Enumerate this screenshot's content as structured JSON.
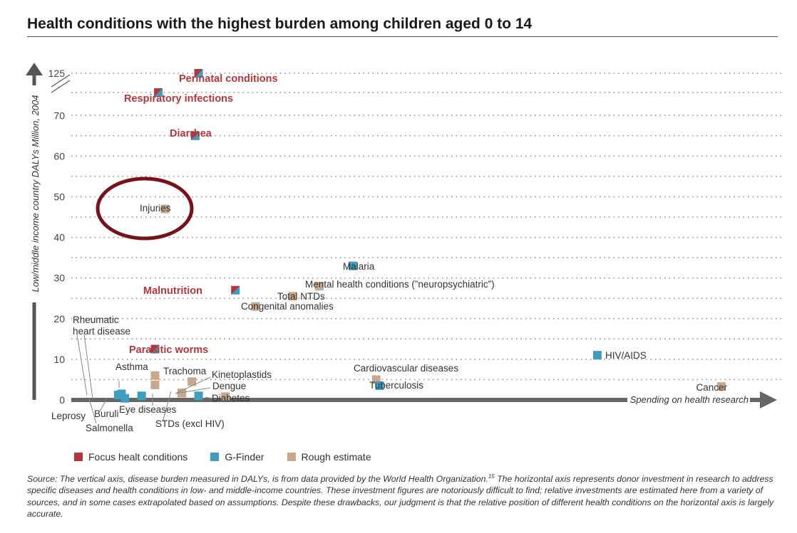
{
  "title": "Health conditions with the highest burden among children aged 0 to 14",
  "colors": {
    "focus": "#b5373c",
    "gfinder": "#3f9ebf",
    "rough": "#c9a78a",
    "axis": "#666666",
    "circle": "#7a1018",
    "focus_label": "#b5373c"
  },
  "legend": [
    {
      "label": "Focus healt conditions",
      "color_key": "focus"
    },
    {
      "label": "G-Finder",
      "color_key": "gfinder"
    },
    {
      "label": "Rough estimate",
      "color_key": "rough"
    }
  ],
  "source": {
    "text": "Source: The vertical axis, disease burden measured in DALYs, is from data provided by the World Health Organization.",
    "footnote": "15",
    "text2": " The horizontal axis represents donor investment in research to address specific diseases and health conditions in low- and middle-income countries. These investment figures are notoriously difficult to find; relative investments are estimated here from a variety of sources, and in some cases extrapolated based on assumptions. Despite these drawbacks, our judgment is that the relative position of different health conditions on the horizontal axis is largely accurate."
  },
  "chart_data": {
    "type": "scatter",
    "title": "Health conditions with the highest burden among children aged 0 to 14",
    "ylabel": "Low/middle income country DALYs Million, 2004",
    "xlabel": "Spending on health research",
    "yticks": [
      "0",
      "10",
      "20",
      "30",
      "40",
      "50",
      "60",
      "70",
      "125"
    ],
    "ylim": [
      0,
      125
    ],
    "axis_break": "between 70 and 125",
    "xlim": [
      0,
      100
    ],
    "x_note": "relative spending, no numeric scale",
    "grid": true,
    "legend_position": "bottom-left",
    "highlight": "Injuries (circled)",
    "points": [
      {
        "name": "Perinatal conditions",
        "x": 19,
        "y": 125,
        "category": "focus"
      },
      {
        "name": "Respiratory infections",
        "x": 13,
        "y": 76,
        "category": "focus"
      },
      {
        "name": "Diarrhea",
        "x": 18.5,
        "y": 65,
        "category": "focus"
      },
      {
        "name": "Injuries",
        "x": 14,
        "y": 47,
        "category": "rough"
      },
      {
        "name": "Malaria",
        "x": 42,
        "y": 33,
        "category": "gfinder"
      },
      {
        "name": "Mental health conditions (\"neuropsychiatric\")",
        "x": 37,
        "y": 28,
        "category": "rough"
      },
      {
        "name": "Malnutrition",
        "x": 24.5,
        "y": 27,
        "category": "focus"
      },
      {
        "name": "Total NTDs",
        "x": 33,
        "y": 25.5,
        "category": "rough"
      },
      {
        "name": "Congenital anomalies",
        "x": 27.5,
        "y": 23,
        "category": "rough"
      },
      {
        "name": "Rheumatic heart disease",
        "x": 7.5,
        "y": 1.5,
        "category": "gfinder"
      },
      {
        "name": "Parasitic worms",
        "x": 12.5,
        "y": 12.5,
        "category": "focus"
      },
      {
        "name": "HIV/AIDS",
        "x": 78.5,
        "y": 11,
        "category": "gfinder"
      },
      {
        "name": "Asthma",
        "x": 12.5,
        "y": 6,
        "category": "rough"
      },
      {
        "name": "Asthma (rough estimate, lower)",
        "x": 12.5,
        "y": 3.7,
        "category": "rough"
      },
      {
        "name": "Cardiovascular diseases",
        "x": 45.5,
        "y": 5,
        "category": "rough"
      },
      {
        "name": "Tuberculosis",
        "x": 46,
        "y": 3.5,
        "category": "gfinder"
      },
      {
        "name": "Trachoma",
        "x": 18,
        "y": 4.5,
        "category": "rough"
      },
      {
        "name": "Kinetoplastids",
        "x": 19,
        "y": 1,
        "category": "gfinder"
      },
      {
        "name": "Dengue",
        "x": 16.5,
        "y": 1.7,
        "category": "rough"
      },
      {
        "name": "Diabetes",
        "x": 23,
        "y": 0.8,
        "category": "rough"
      },
      {
        "name": "Cancer",
        "x": 97,
        "y": 3.3,
        "category": "rough"
      },
      {
        "name": "Leprosy",
        "x": 7,
        "y": 1.2,
        "category": "gfinder"
      },
      {
        "name": "Salmonella",
        "x": 8,
        "y": 0.4,
        "category": "gfinder"
      },
      {
        "name": "Buruli",
        "x": 10.5,
        "y": 1,
        "category": "gfinder"
      },
      {
        "name": "Eye diseases",
        "x": 16.5,
        "y": 1.7,
        "category": "rough"
      },
      {
        "name": "STDs (excl HIV)",
        "x": 16.5,
        "y": 1.7,
        "category": "rough"
      }
    ],
    "labels": [
      {
        "text": "Perinatal conditions",
        "style": "focus"
      },
      {
        "text": "Respiratory infections",
        "style": "focus"
      },
      {
        "text": "Diarrhea",
        "style": "focus"
      },
      {
        "text": "Injuries",
        "style": "normal"
      },
      {
        "text": "Malaria",
        "style": "normal"
      },
      {
        "text": "Mental health conditions (”neuropsychiatric”)",
        "style": "normal"
      },
      {
        "text": "Malnutrition",
        "style": "focus"
      },
      {
        "text": "Total NTDs",
        "style": "normal"
      },
      {
        "text": "Congenital anomalies",
        "style": "normal"
      },
      {
        "text": "Rheumatic",
        "style": "normal"
      },
      {
        "text": "heart disease",
        "style": "normal"
      },
      {
        "text": "Parasitic worms",
        "style": "focus"
      },
      {
        "text": "HIV/AIDS",
        "style": "normal"
      },
      {
        "text": "Asthma",
        "style": "normal"
      },
      {
        "text": "Cardiovascular diseases",
        "style": "normal"
      },
      {
        "text": "Tuberculosis",
        "style": "normal"
      },
      {
        "text": "Trachoma",
        "style": "normal"
      },
      {
        "text": "Kinetoplastids",
        "style": "normal"
      },
      {
        "text": "Dengue",
        "style": "normal"
      },
      {
        "text": "Diabetes",
        "style": "normal"
      },
      {
        "text": "Cancer",
        "style": "normal"
      },
      {
        "text": "Leprosy",
        "style": "normal"
      },
      {
        "text": "Salmonella",
        "style": "normal"
      },
      {
        "text": "Buruli",
        "style": "normal"
      },
      {
        "text": "Eye diseases",
        "style": "normal"
      },
      {
        "text": "STDs (excl HIV)",
        "style": "normal"
      }
    ]
  }
}
